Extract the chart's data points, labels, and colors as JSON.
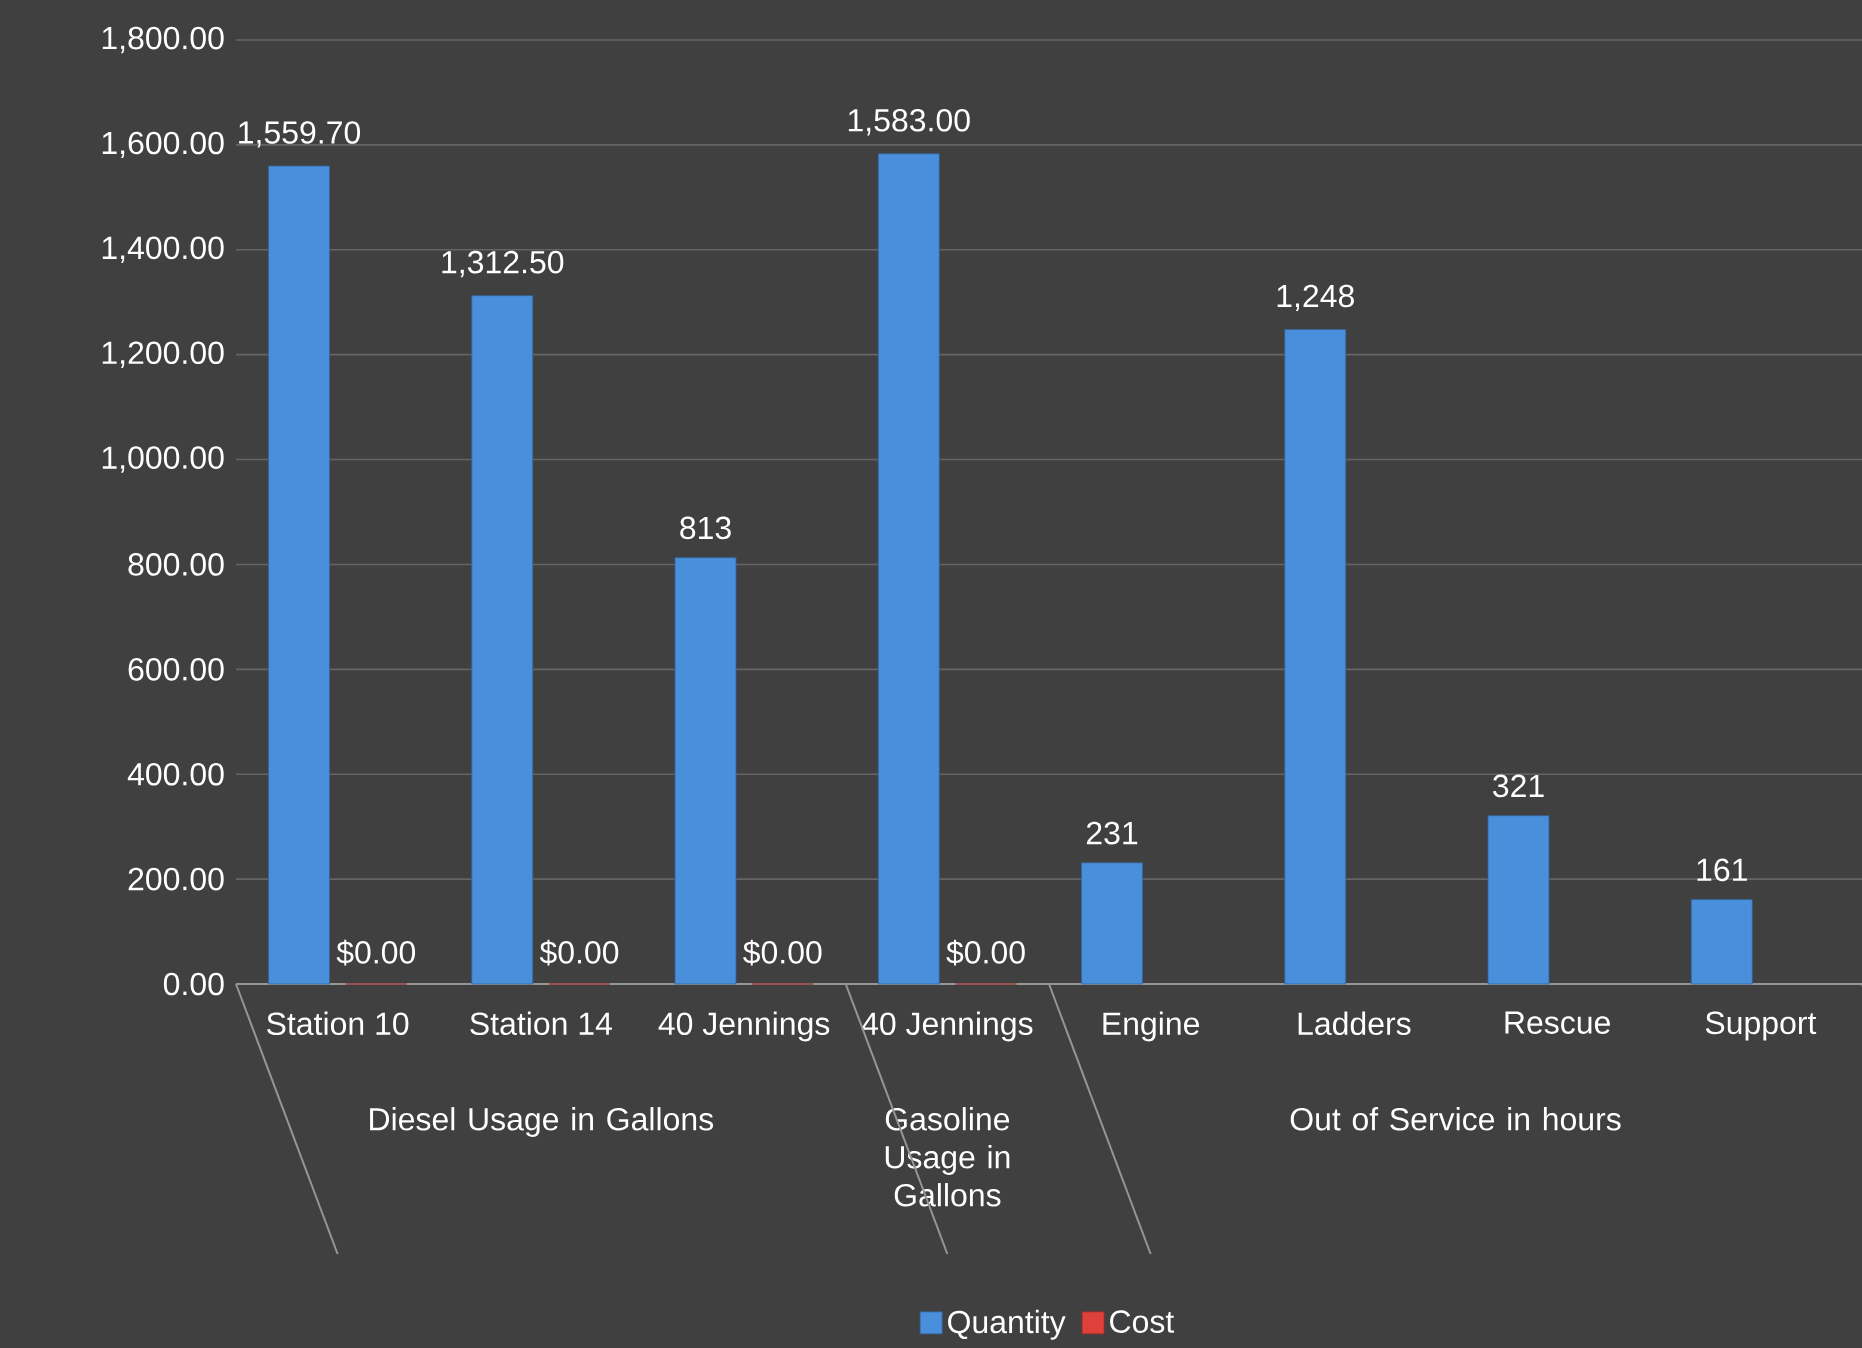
{
  "chart_data": {
    "type": "bar",
    "categories": [
      "Station 10",
      "Station 14",
      "40 Jennings",
      "40 Jennings",
      "Engine",
      "Ladders",
      "Rescue",
      "Support"
    ],
    "series": [
      {
        "name": "Quantity",
        "color": "#4a8fdc",
        "values": [
          1559.7,
          1312.5,
          813,
          1583,
          231,
          1248,
          321,
          161
        ],
        "value_labels": [
          "1,559.70",
          "1,312.50",
          "813",
          "1,583.00",
          "231",
          "1,248",
          "321",
          "161"
        ]
      },
      {
        "name": "Cost",
        "color": "#e0403a",
        "values": [
          0,
          0,
          0,
          0,
          null,
          null,
          null,
          null
        ],
        "value_labels": [
          "$0.00",
          "$0.00",
          "$0.00",
          "$0.00",
          null,
          null,
          null,
          null
        ]
      }
    ],
    "ylim": [
      0,
      1800
    ],
    "yticks": [
      {
        "value": 0,
        "label": "0.00"
      },
      {
        "value": 200,
        "label": "200.00"
      },
      {
        "value": 400,
        "label": "400.00"
      },
      {
        "value": 600,
        "label": "600.00"
      },
      {
        "value": 800,
        "label": "800.00"
      },
      {
        "value": 1000,
        "label": "1,000.00"
      },
      {
        "value": 1200,
        "label": "1,200.00"
      },
      {
        "value": 1400,
        "label": "1,400.00"
      },
      {
        "value": 1600,
        "label": "1,600.00"
      },
      {
        "value": 1800,
        "label": "1,800.00"
      }
    ],
    "grid": "y",
    "legend": "bottom",
    "annotations": [
      "Diesel Usage in Gallons",
      "Gasoline Usage in Gallons",
      "Out of Service in hours"
    ]
  }
}
